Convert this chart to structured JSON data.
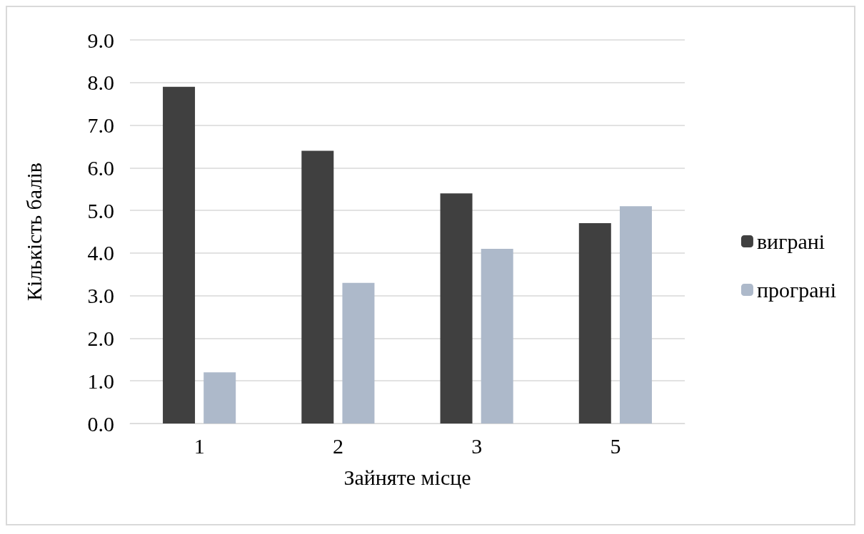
{
  "chart_data": {
    "type": "bar",
    "xlabel": "Зайняте місце",
    "ylabel": "Кількість балів",
    "categories": [
      "1",
      "2",
      "3",
      "5"
    ],
    "series": [
      {
        "name": "виграні",
        "color": "#404040",
        "values": [
          7.9,
          6.4,
          5.4,
          4.7
        ]
      },
      {
        "name": "програні",
        "color": "#adb9ca",
        "values": [
          1.2,
          3.3,
          4.1,
          5.1
        ]
      }
    ],
    "ylim": [
      0,
      9
    ],
    "yticks": [
      {
        "value": 0,
        "label": "0.0"
      },
      {
        "value": 1,
        "label": "1.0"
      },
      {
        "value": 2,
        "label": "2.0"
      },
      {
        "value": 3,
        "label": "3.0"
      },
      {
        "value": 4,
        "label": "4.0"
      },
      {
        "value": 5,
        "label": "5.0"
      },
      {
        "value": 6,
        "label": "6.0"
      },
      {
        "value": 7,
        "label": "7.0"
      },
      {
        "value": 8,
        "label": "8.0"
      },
      {
        "value": 9,
        "label": "9.0"
      }
    ],
    "grid": "y",
    "legend": "right"
  }
}
